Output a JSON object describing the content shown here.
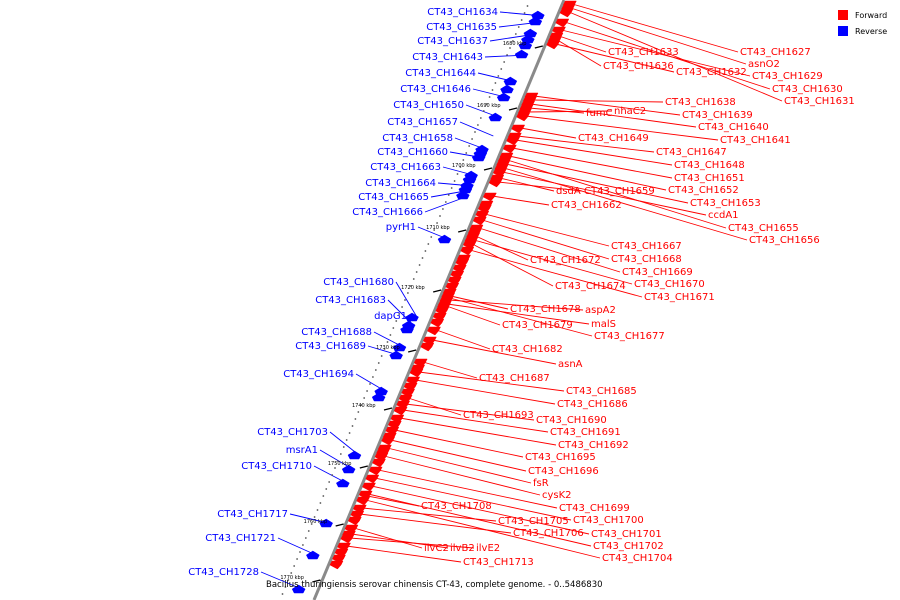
{
  "legend": [
    {
      "label": "Forward",
      "color": "#ff0000"
    },
    {
      "label": "Reverse",
      "color": "#0000ff"
    }
  ],
  "caption": "Bacillus thuringiensis serovar chinensis CT-43, complete genome. - 0..5486830",
  "ticks": [
    "1680 kbp",
    "1690 kbp",
    "1700 kbp",
    "1710 kbp",
    "1720 kbp",
    "1730 kbp",
    "1740 kbp",
    "1750 kbp",
    "1760 kbp",
    "1770 kbp"
  ],
  "reverse_genes": [
    "CT43_CH1634",
    "CT43_CH1635",
    "CT43_CH1637",
    "CT43_CH1643",
    "CT43_CH1644",
    "CT43_CH1646",
    "CT43_CH1650",
    "CT43_CH1657",
    "CT43_CH1658",
    "CT43_CH1660",
    "CT43_CH1663",
    "CT43_CH1664",
    "CT43_CH1665",
    "CT43_CH1666",
    "pyrH1",
    "CT43_CH1680",
    "CT43_CH1683",
    "dapG1",
    "CT43_CH1688",
    "CT43_CH1689",
    "CT43_CH1694",
    "CT43_CH1703",
    "msrA1",
    "CT43_CH1710",
    "CT43_CH1717",
    "CT43_CH1721",
    "CT43_CH1728"
  ],
  "forward_genes": [
    "CT43_CH1627",
    "asnO2",
    "CT43_CH1633",
    "CT43_CH1636",
    "CT43_CH1632",
    "CT43_CH1629",
    "CT43_CH1630",
    "CT43_CH1631",
    "CT43_CH1638",
    "fumC",
    "nhaC2",
    "CT43_CH1639",
    "CT43_CH1640",
    "CT43_CH1649",
    "CT43_CH1641",
    "CT43_CH1647",
    "CT43_CH1648",
    "CT43_CH1651",
    "dsdA",
    "CT43_CH1659",
    "CT43_CH1652",
    "CT43_CH1662",
    "CT43_CH1653",
    "ccdA1",
    "CT43_CH1655",
    "CT43_CH1656",
    "CT43_CH1667",
    "CT43_CH1668",
    "CT43_CH1672",
    "CT43_CH1669",
    "CT43_CH1674",
    "CT43_CH1670",
    "CT43_CH1671",
    "CT43_CH1678",
    "aspA2",
    "CT43_CH1679",
    "malS",
    "CT43_CH1677",
    "CT43_CH1682",
    "asnA",
    "CT43_CH1687",
    "CT43_CH1685",
    "CT43_CH1686",
    "CT43_CH1693",
    "CT43_CH1690",
    "CT43_CH1691",
    "CT43_CH1692",
    "CT43_CH1695",
    "CT43_CH1696",
    "fsR",
    "cysK2",
    "CT43_CH1708",
    "CT43_CH1699",
    "CT43_CH1705",
    "CT43_CH1700",
    "CT43_CH1706",
    "CT43_CH1701",
    "CT43_CH1702",
    "ilvC2",
    "ilvB2",
    "ilvE2",
    "CT43_CH1704",
    "CT43_CH1713"
  ]
}
